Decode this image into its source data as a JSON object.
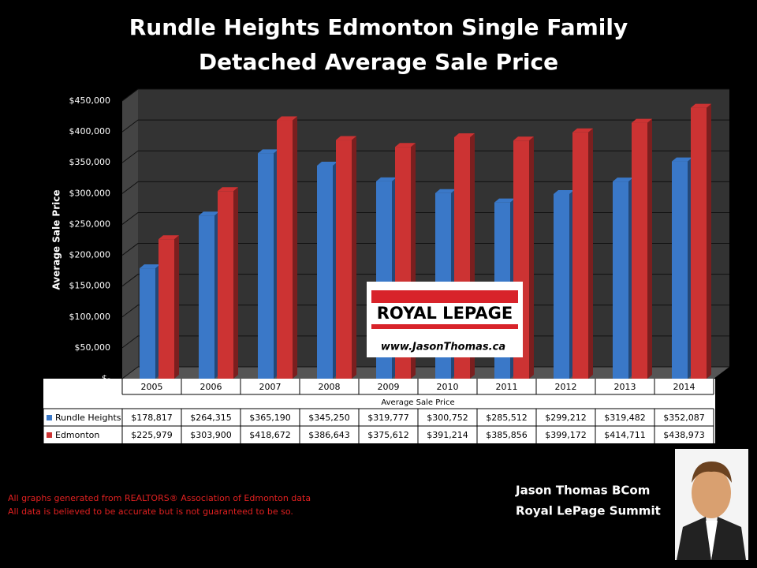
{
  "chart_data": {
    "type": "bar",
    "title": [
      "Rundle Heights Edmonton Single Family",
      "Detached Average Sale Price"
    ],
    "y_label": "Average Sale Price",
    "x_label": "Average Sale Price",
    "categories": [
      "2005",
      "2006",
      "2007",
      "2008",
      "2009",
      "2010",
      "2011",
      "2012",
      "2013",
      "2014"
    ],
    "series": [
      {
        "name": "Rundle Heights",
        "color": "#3a78c8",
        "values": [
          178817,
          264315,
          365190,
          345250,
          319777,
          300752,
          285512,
          299212,
          319482,
          352087
        ],
        "value_labels": [
          "$178,817",
          "$264,315",
          "$365,190",
          "$345,250",
          "$319,777",
          "$300,752",
          "$285,512",
          "$299,212",
          "$319,482",
          "$352,087"
        ]
      },
      {
        "name": "Edmonton",
        "color": "#cc3333",
        "values": [
          225979,
          303900,
          418672,
          386643,
          375612,
          391214,
          385856,
          399172,
          414711,
          438973
        ],
        "value_labels": [
          "$225,979",
          "$303,900",
          "$418,672",
          "$386,643",
          "$375,612",
          "$391,214",
          "$385,856",
          "$399,172",
          "$414,711",
          "$438,973"
        ]
      }
    ],
    "ylim": [
      0,
      450000
    ],
    "yticks": [
      {
        "value": 0,
        "label": "$-"
      },
      {
        "value": 50000,
        "label": "$50,000"
      },
      {
        "value": 100000,
        "label": "$100,000"
      },
      {
        "value": 150000,
        "label": "$150,000"
      },
      {
        "value": 200000,
        "label": "$200,000"
      },
      {
        "value": 250000,
        "label": "$250,000"
      },
      {
        "value": 300000,
        "label": "$300,000"
      },
      {
        "value": 350000,
        "label": "$350,000"
      },
      {
        "value": 400000,
        "label": "$400,000"
      },
      {
        "value": 450000,
        "label": "$450,000"
      }
    ],
    "grid": true,
    "logo": {
      "brand": "ROYAL LEPAGE",
      "url": "www.JasonThomas.ca"
    },
    "footnotes": [
      "All graphs generated from REALTORS® Association of Edmonton data",
      "All data is believed to be accurate but is not guaranteed to be so."
    ],
    "agent": [
      "Jason Thomas BCom",
      "Royal LePage Summit"
    ]
  }
}
